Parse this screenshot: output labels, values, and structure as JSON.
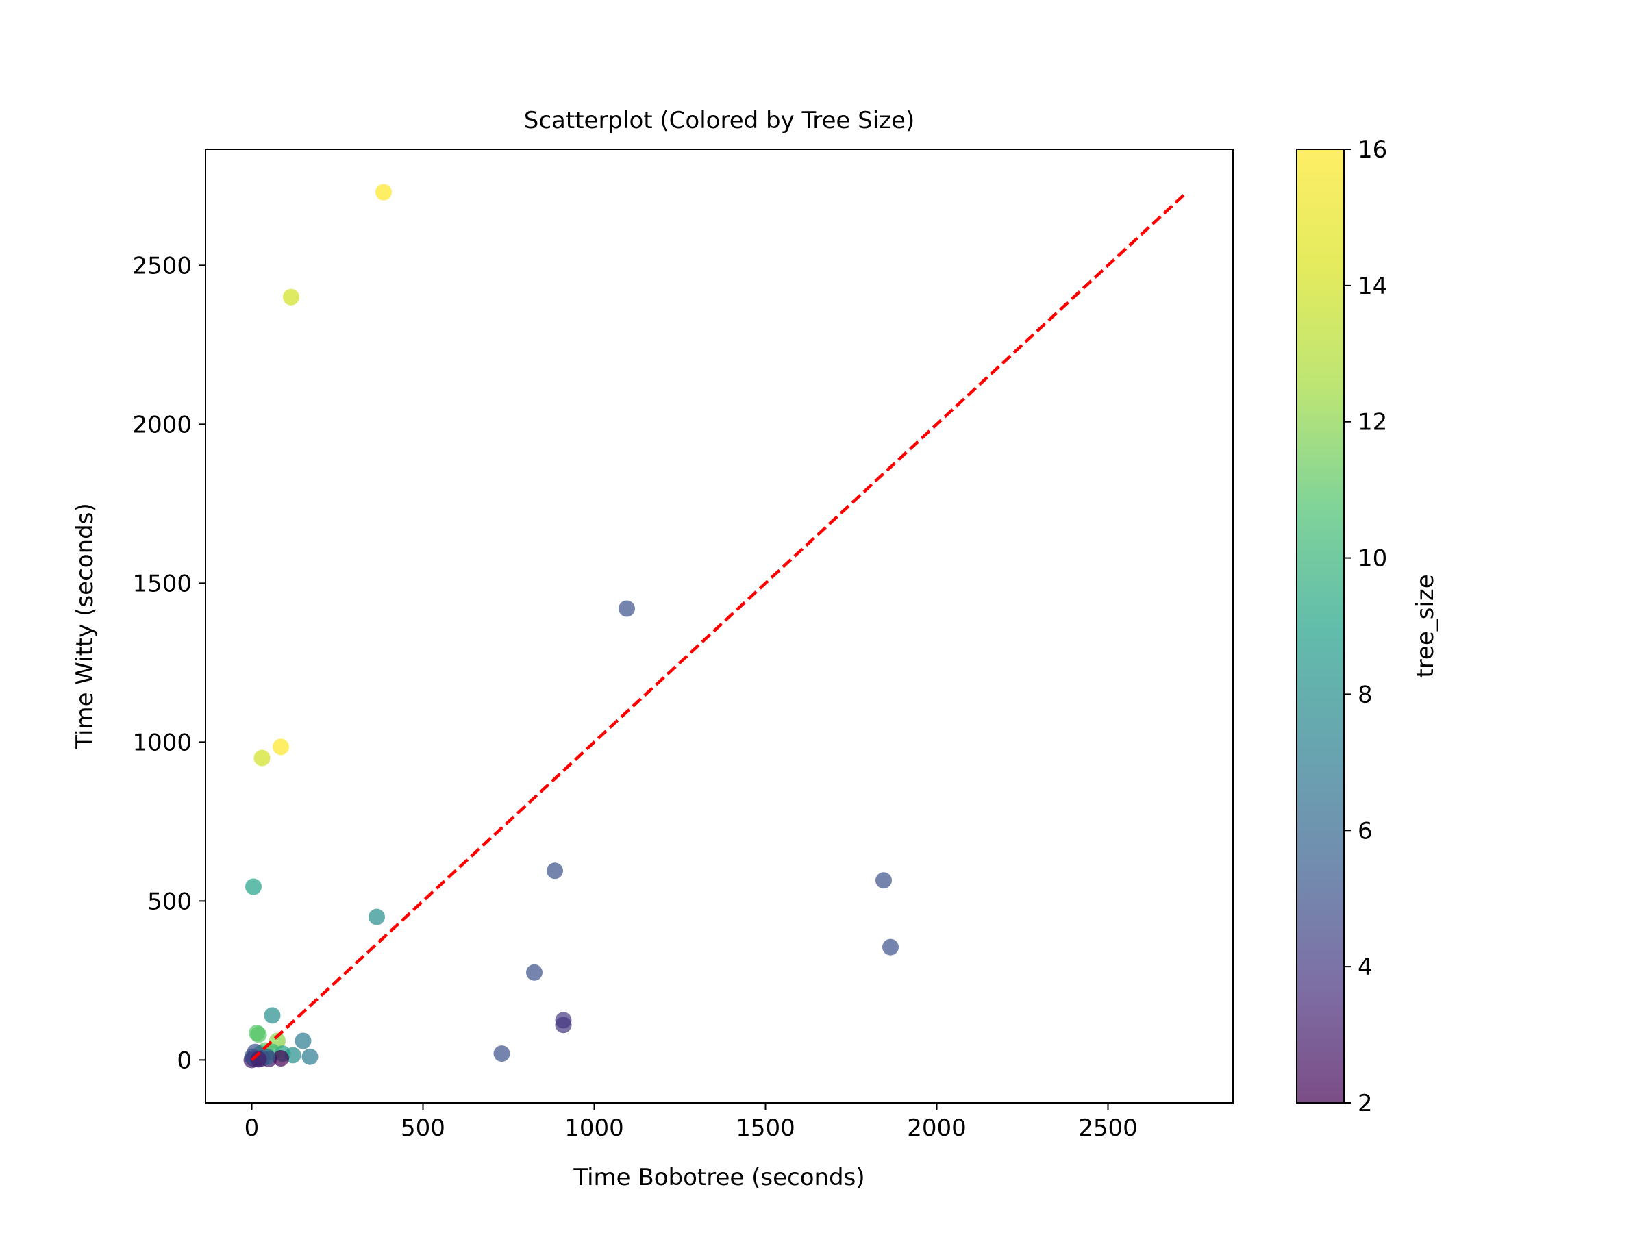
{
  "chart_data": {
    "type": "scatter",
    "title": "Scatterplot (Colored by Tree Size)",
    "xlabel": "Time Bobotree (seconds)",
    "ylabel": "Time Witty (seconds)",
    "xlim": [
      -135,
      2865
    ],
    "ylim": [
      -135,
      2865
    ],
    "xticks": [
      0,
      500,
      1000,
      1500,
      2000,
      2500
    ],
    "yticks": [
      0,
      500,
      1000,
      1500,
      2000,
      2500
    ],
    "grid": false,
    "colorbar": {
      "label": "tree_size",
      "min": 2,
      "max": 16,
      "ticks": [
        2,
        4,
        6,
        8,
        10,
        12,
        14,
        16
      ],
      "colormap": "viridis"
    },
    "reference_line": {
      "style": "dashed",
      "color": "#ff0000",
      "from": [
        0,
        0
      ],
      "to": [
        2730,
        2730
      ]
    },
    "points": [
      {
        "x": 385,
        "y": 2730,
        "tree_size": 16
      },
      {
        "x": 115,
        "y": 2400,
        "tree_size": 14
      },
      {
        "x": 85,
        "y": 985,
        "tree_size": 16
      },
      {
        "x": 30,
        "y": 950,
        "tree_size": 14
      },
      {
        "x": 1095,
        "y": 1420,
        "tree_size": 5
      },
      {
        "x": 885,
        "y": 595,
        "tree_size": 5
      },
      {
        "x": 1845,
        "y": 565,
        "tree_size": 5
      },
      {
        "x": 1865,
        "y": 355,
        "tree_size": 5
      },
      {
        "x": 5,
        "y": 545,
        "tree_size": 9
      },
      {
        "x": 365,
        "y": 450,
        "tree_size": 8
      },
      {
        "x": 825,
        "y": 275,
        "tree_size": 5
      },
      {
        "x": 910,
        "y": 125,
        "tree_size": 4
      },
      {
        "x": 910,
        "y": 110,
        "tree_size": 4
      },
      {
        "x": 730,
        "y": 20,
        "tree_size": 5
      },
      {
        "x": 60,
        "y": 140,
        "tree_size": 8
      },
      {
        "x": 15,
        "y": 85,
        "tree_size": 11
      },
      {
        "x": 20,
        "y": 80,
        "tree_size": 11
      },
      {
        "x": 75,
        "y": 60,
        "tree_size": 12
      },
      {
        "x": 150,
        "y": 60,
        "tree_size": 7
      },
      {
        "x": 170,
        "y": 10,
        "tree_size": 7
      },
      {
        "x": 120,
        "y": 15,
        "tree_size": 8
      },
      {
        "x": 90,
        "y": 20,
        "tree_size": 9
      },
      {
        "x": 60,
        "y": 25,
        "tree_size": 10
      },
      {
        "x": 40,
        "y": 30,
        "tree_size": 11
      },
      {
        "x": 25,
        "y": 20,
        "tree_size": 10
      },
      {
        "x": 10,
        "y": 25,
        "tree_size": 5
      },
      {
        "x": 5,
        "y": 5,
        "tree_size": 4
      },
      {
        "x": 0,
        "y": 0,
        "tree_size": 3
      },
      {
        "x": 15,
        "y": 3,
        "tree_size": 4
      },
      {
        "x": 30,
        "y": 5,
        "tree_size": 4
      },
      {
        "x": 50,
        "y": 3,
        "tree_size": 3
      },
      {
        "x": 85,
        "y": 5,
        "tree_size": 2
      },
      {
        "x": 45,
        "y": 10,
        "tree_size": 6
      },
      {
        "x": 2,
        "y": 10,
        "tree_size": 5
      },
      {
        "x": 20,
        "y": 2,
        "tree_size": 3
      }
    ]
  }
}
